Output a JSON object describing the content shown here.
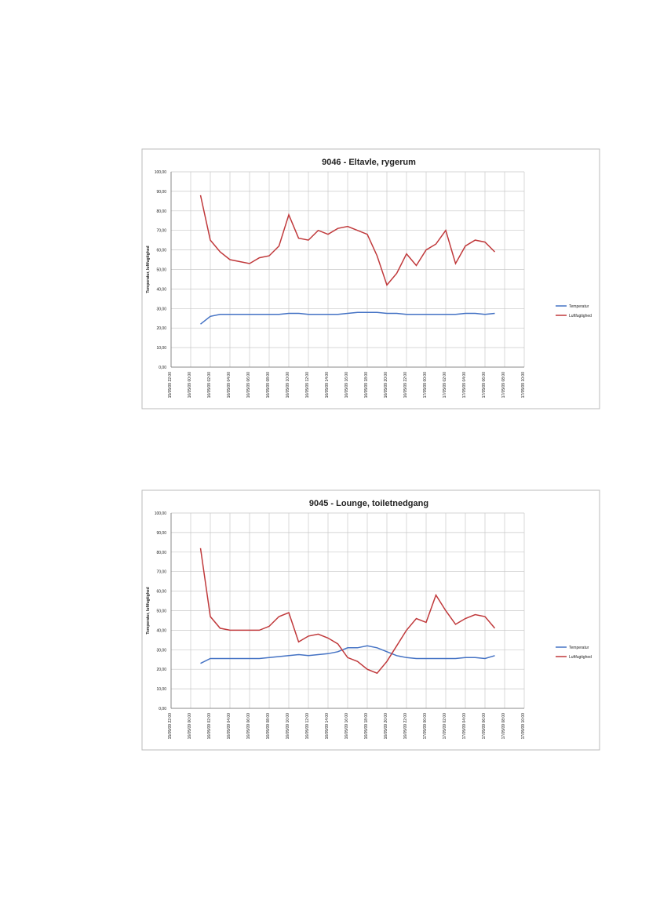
{
  "chart_data": [
    {
      "type": "line",
      "title": "9046 - Eltavle, rygerum",
      "y_label": "Temperatur, luftfugtighed",
      "x": [
        3,
        4,
        5,
        6,
        7,
        8,
        9,
        10,
        11,
        12,
        13,
        14,
        15,
        16,
        17,
        18,
        19,
        20,
        21,
        22,
        23,
        24,
        25,
        26,
        27,
        28,
        29,
        30,
        31,
        32,
        33
      ],
      "series": [
        {
          "name": "Temperatur",
          "color": "#4472c4",
          "values": [
            22,
            26,
            27,
            27,
            27,
            27,
            27,
            27,
            27,
            27.5,
            27.5,
            27,
            27,
            27,
            27,
            27.5,
            28,
            28,
            28,
            27.5,
            27.5,
            27,
            27,
            27,
            27,
            27,
            27,
            27.5,
            27.5,
            27,
            27.5
          ]
        },
        {
          "name": "Luftfugtighed",
          "color": "#c0393b",
          "values": [
            88,
            65,
            59,
            55,
            54,
            53,
            56,
            57,
            62,
            78,
            66,
            65,
            70,
            68,
            71,
            72,
            70,
            68,
            57,
            42,
            48,
            58,
            52,
            60,
            63,
            70,
            53,
            62,
            65,
            64,
            59
          ]
        }
      ],
      "xlim": [
        0,
        36
      ],
      "xticks": [
        {
          "value": 0,
          "label": "15/05/09 22:00"
        },
        {
          "value": 2,
          "label": "16/05/09 00:00"
        },
        {
          "value": 4,
          "label": "16/05/09 02:00"
        },
        {
          "value": 6,
          "label": "16/05/09 04:00"
        },
        {
          "value": 8,
          "label": "16/05/09 06:00"
        },
        {
          "value": 10,
          "label": "16/05/09 08:00"
        },
        {
          "value": 12,
          "label": "16/05/09 10:00"
        },
        {
          "value": 14,
          "label": "16/05/09 12:00"
        },
        {
          "value": 16,
          "label": "16/05/09 14:00"
        },
        {
          "value": 18,
          "label": "16/05/09 16:00"
        },
        {
          "value": 20,
          "label": "16/05/09 18:00"
        },
        {
          "value": 22,
          "label": "16/05/09 20:00"
        },
        {
          "value": 24,
          "label": "16/05/09 22:00"
        },
        {
          "value": 26,
          "label": "17/05/09 00:00"
        },
        {
          "value": 28,
          "label": "17/05/09 02:00"
        },
        {
          "value": 30,
          "label": "17/05/09 04:00"
        },
        {
          "value": 32,
          "label": "17/05/09 06:00"
        },
        {
          "value": 34,
          "label": "17/05/09 08:00"
        },
        {
          "value": 36,
          "label": "17/05/09 10:00"
        }
      ],
      "ylim": [
        0,
        100
      ],
      "yticks": [
        {
          "value": 0,
          "label": "0,00"
        },
        {
          "value": 10,
          "label": "10,00"
        },
        {
          "value": 20,
          "label": "20,00"
        },
        {
          "value": 30,
          "label": "30,00"
        },
        {
          "value": 40,
          "label": "40,00"
        },
        {
          "value": 50,
          "label": "50,00"
        },
        {
          "value": 60,
          "label": "60,00"
        },
        {
          "value": 70,
          "label": "70,00"
        },
        {
          "value": 80,
          "label": "80,00"
        },
        {
          "value": 90,
          "label": "90,00"
        },
        {
          "value": 100,
          "label": "100,00"
        }
      ],
      "grid": true,
      "legend": "right"
    },
    {
      "type": "line",
      "title": "9045 - Lounge, toiletnedgang",
      "y_label": "Temperatur, luftfugtighed",
      "x": [
        3,
        4,
        5,
        6,
        7,
        8,
        9,
        10,
        11,
        12,
        13,
        14,
        15,
        16,
        17,
        18,
        19,
        20,
        21,
        22,
        23,
        24,
        25,
        26,
        27,
        28,
        29,
        30,
        31,
        32,
        33
      ],
      "series": [
        {
          "name": "Temperatur",
          "color": "#4472c4",
          "values": [
            23,
            25.5,
            25.5,
            25.5,
            25.5,
            25.5,
            25.5,
            26,
            26.5,
            27,
            27.5,
            27,
            27.5,
            28,
            29,
            31,
            31,
            32,
            31,
            29,
            27,
            26,
            25.5,
            25.5,
            25.5,
            25.5,
            25.5,
            26,
            26,
            25.5,
            27
          ]
        },
        {
          "name": "Luftfugtighed",
          "color": "#c0393b",
          "values": [
            82,
            47,
            41,
            40,
            40,
            40,
            40,
            42,
            47,
            49,
            34,
            37,
            38,
            36,
            33,
            26,
            24,
            20,
            18,
            24,
            32,
            40,
            46,
            44,
            58,
            50,
            43,
            46,
            48,
            47,
            41
          ]
        }
      ],
      "xlim": [
        0,
        36
      ],
      "xticks": [
        {
          "value": 0,
          "label": "15/05/09 22:00"
        },
        {
          "value": 2,
          "label": "16/05/09 00:00"
        },
        {
          "value": 4,
          "label": "16/05/09 02:00"
        },
        {
          "value": 6,
          "label": "16/05/09 04:00"
        },
        {
          "value": 8,
          "label": "16/05/09 06:00"
        },
        {
          "value": 10,
          "label": "16/05/09 08:00"
        },
        {
          "value": 12,
          "label": "16/05/09 10:00"
        },
        {
          "value": 14,
          "label": "16/05/09 12:00"
        },
        {
          "value": 16,
          "label": "16/05/09 14:00"
        },
        {
          "value": 18,
          "label": "16/05/09 16:00"
        },
        {
          "value": 20,
          "label": "16/05/09 18:00"
        },
        {
          "value": 22,
          "label": "16/05/09 20:00"
        },
        {
          "value": 24,
          "label": "16/05/09 22:00"
        },
        {
          "value": 26,
          "label": "17/05/09 00:00"
        },
        {
          "value": 28,
          "label": "17/05/09 02:00"
        },
        {
          "value": 30,
          "label": "17/05/09 04:00"
        },
        {
          "value": 32,
          "label": "17/05/09 06:00"
        },
        {
          "value": 34,
          "label": "17/05/09 08:00"
        },
        {
          "value": 36,
          "label": "17/05/09 10:00"
        }
      ],
      "ylim": [
        0,
        100
      ],
      "yticks": [
        {
          "value": 0,
          "label": "0,00"
        },
        {
          "value": 10,
          "label": "10,00"
        },
        {
          "value": 20,
          "label": "20,00"
        },
        {
          "value": 30,
          "label": "30,00"
        },
        {
          "value": 40,
          "label": "40,00"
        },
        {
          "value": 50,
          "label": "50,00"
        },
        {
          "value": 60,
          "label": "60,00"
        },
        {
          "value": 70,
          "label": "70,00"
        },
        {
          "value": 80,
          "label": "80,00"
        },
        {
          "value": 90,
          "label": "90,00"
        },
        {
          "value": 100,
          "label": "100,00"
        }
      ],
      "grid": true,
      "legend": "right"
    }
  ]
}
